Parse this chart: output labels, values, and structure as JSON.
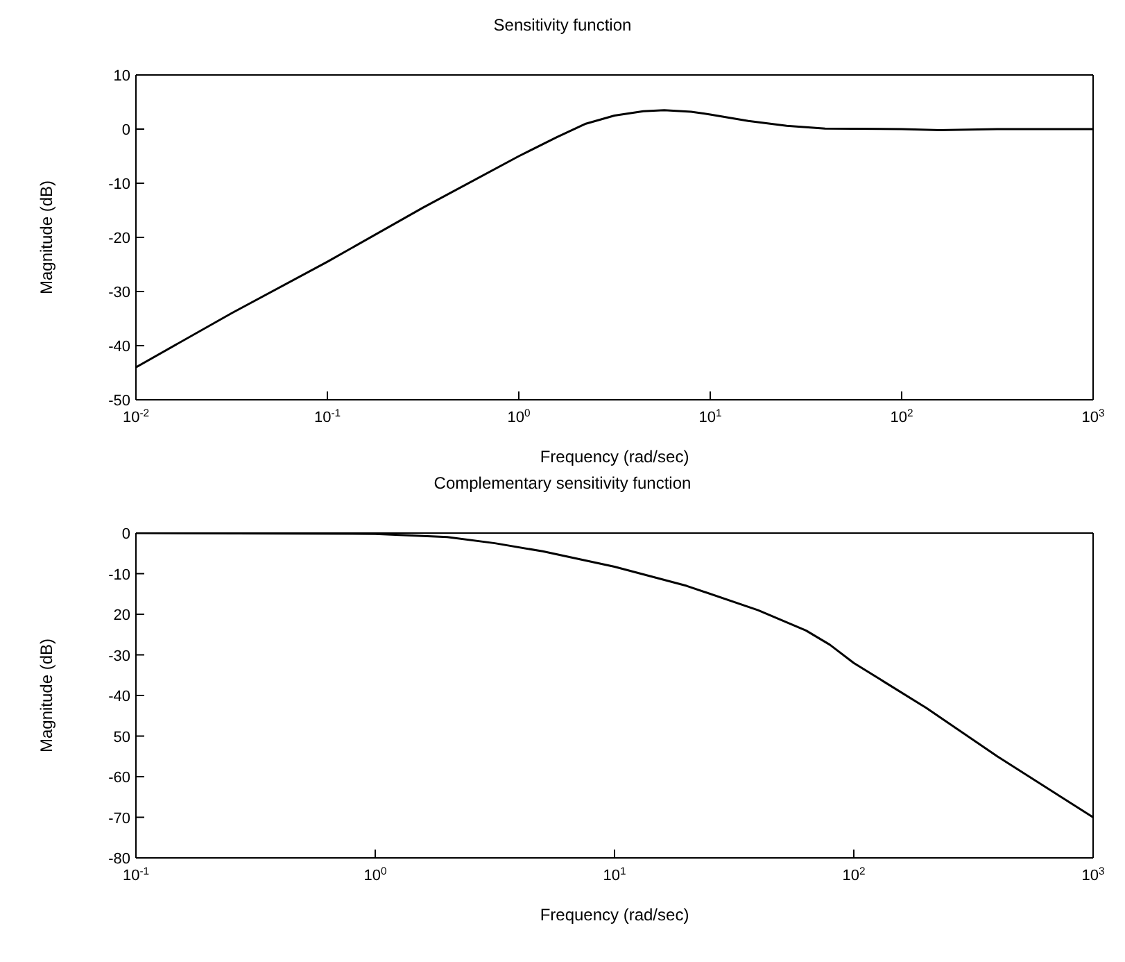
{
  "chart_data": [
    {
      "type": "line",
      "title": "Sensitivity function",
      "xlabel": "Frequency (rad/sec)",
      "ylabel": "Magnitude (dB)",
      "log": "x",
      "xlim": [
        0.01,
        1000
      ],
      "xticks": [
        {
          "value": 0.01,
          "label": "10$^{-2}$"
        },
        {
          "value": 0.1,
          "label": "10$^{-1}$"
        },
        {
          "value": 1,
          "label": "10$^{0}$"
        },
        {
          "value": 10,
          "label": "10$^{1}$"
        },
        {
          "value": 100,
          "label": "10$^{2}$"
        },
        {
          "value": 1000,
          "label": "10$^{3}$"
        }
      ],
      "ylim": [
        -50,
        10
      ],
      "yticks": [
        -50,
        -40,
        -30,
        -20,
        -10,
        0,
        10
      ],
      "x": [
        0.01,
        0.0316,
        0.1,
        0.316,
        1,
        1.58,
        2.24,
        3.16,
        4.47,
        5.75,
        7.94,
        10,
        15.8,
        25.1,
        39.8,
        100,
        158,
        316,
        1000
      ],
      "series": [
        {
          "color": "#000000",
          "values": [
            -44,
            -34,
            -24.5,
            -14.5,
            -5,
            -1.5,
            1,
            2.5,
            3.3,
            3.5,
            3.2,
            2.7,
            1.5,
            0.6,
            0.1,
            0,
            -0.2,
            0,
            0
          ]
        }
      ]
    },
    {
      "type": "line",
      "title": "Complementary sensitivity function",
      "xlabel": "Frequency (rad/sec)",
      "ylabel": "Magnitude (dB)",
      "log": "x",
      "xlim": [
        0.1,
        1000
      ],
      "xticks": [
        {
          "value": 0.1,
          "label": "10$^{-1}$"
        },
        {
          "value": 1,
          "label": "10$^{0}$"
        },
        {
          "value": 10,
          "label": "10$^{1}$"
        },
        {
          "value": 100,
          "label": "10$^{2}$"
        },
        {
          "value": 1000,
          "label": "10$^{3}$"
        }
      ],
      "ylim": [
        -80,
        0
      ],
      "yticks": [
        -80,
        -70,
        -60,
        {
          "value": -50,
          "label": "50"
        },
        -40,
        -30,
        {
          "value": -20,
          "label": "20"
        },
        -10,
        0
      ],
      "x": [
        0.1,
        1,
        2,
        3.16,
        5.01,
        10,
        20,
        39.8,
        63.1,
        79.4,
        100,
        200,
        398,
        1000
      ],
      "series": [
        {
          "color": "#000000",
          "values": [
            0,
            -0.2,
            -1,
            -2.5,
            -4.5,
            -8.3,
            -13,
            -19,
            -24,
            -27.5,
            -32,
            -43,
            -55,
            -70
          ]
        }
      ]
    }
  ]
}
